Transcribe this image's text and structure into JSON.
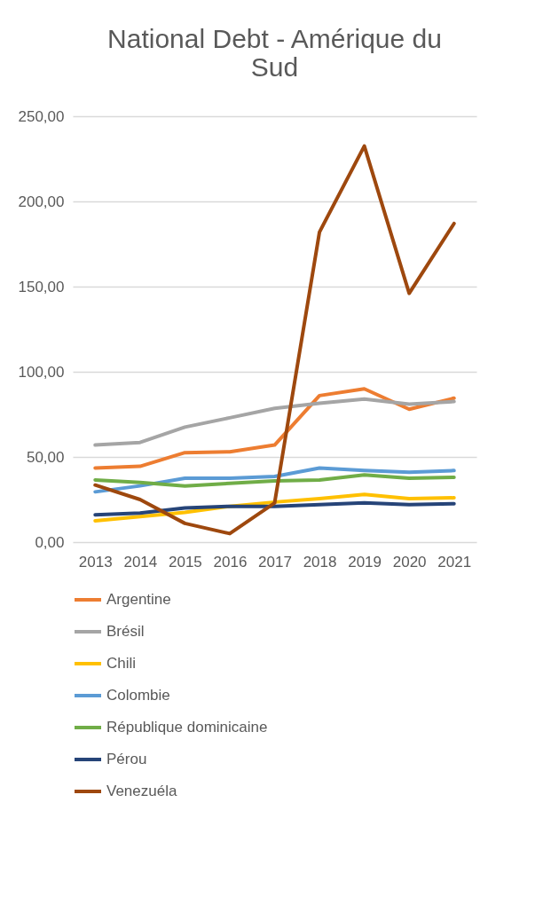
{
  "chart_data": {
    "type": "line",
    "title": [
      "National Debt - Amérique du",
      "Sud"
    ],
    "categories": [
      "2013",
      "2014",
      "2015",
      "2016",
      "2017",
      "2018",
      "2019",
      "2020",
      "2021"
    ],
    "ylim": [
      0,
      250
    ],
    "yticks": [
      {
        "value": 0,
        "label": "0,00"
      },
      {
        "value": 50,
        "label": "50,00"
      },
      {
        "value": 100,
        "label": "100,00"
      },
      {
        "value": 150,
        "label": "150,00"
      },
      {
        "value": 200,
        "label": "200,00"
      },
      {
        "value": 250,
        "label": "250,00"
      }
    ],
    "grid": "y",
    "legend": "bottom",
    "marker": "none",
    "line_style": "solid",
    "series": [
      {
        "name": "Argentine",
        "color": "#ed7d31",
        "values": [
          43.5,
          44.5,
          52.5,
          53,
          57,
          86,
          90,
          78,
          84.5
        ]
      },
      {
        "name": "Brésil",
        "color": "#a5a5a5",
        "values": [
          57,
          58.5,
          67.5,
          73,
          78.5,
          81.5,
          84,
          81,
          82.5
        ]
      },
      {
        "name": "Chili",
        "color": "#ffc000",
        "values": [
          12.5,
          15,
          17.5,
          21,
          23.5,
          25.5,
          28,
          25.5,
          26
        ]
      },
      {
        "name": "Colombie",
        "color": "#5b9bd5",
        "values": [
          29.5,
          33,
          37.5,
          37.5,
          38.5,
          43.5,
          42,
          41,
          42
        ]
      },
      {
        "name": "République dominicaine",
        "color": "#70ad47",
        "values": [
          36.5,
          35,
          33,
          34.5,
          36,
          36.5,
          39.5,
          37.5,
          38
        ]
      },
      {
        "name": "Pérou",
        "color": "#264478",
        "values": [
          16,
          17,
          20,
          21,
          21,
          22,
          23,
          22,
          22.5
        ]
      },
      {
        "name": "Venezuéla",
        "color": "#9e480e",
        "values": [
          33.5,
          25,
          11,
          5,
          23,
          182,
          232.5,
          146,
          187
        ]
      }
    ]
  }
}
